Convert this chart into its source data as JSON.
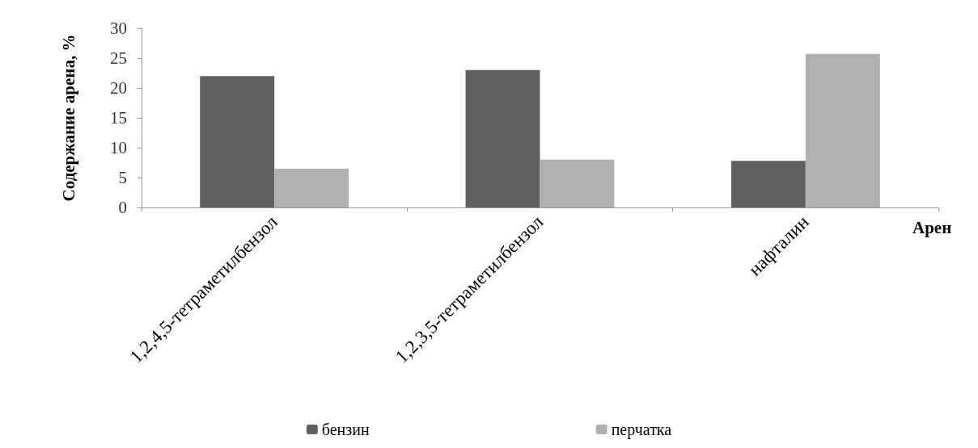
{
  "chart_data": {
    "type": "bar",
    "xlabel": "Арен",
    "ylabel": "Содержание арена, %",
    "categories": [
      "1,2,4,5-тетраметилбензол",
      "1,2,3,5-тетраметилбензол",
      "нафталин"
    ],
    "series": [
      {
        "name": "бензин",
        "color": "#606060",
        "values": [
          22,
          23,
          7.8
        ]
      },
      {
        "name": "перчатка",
        "color": "#b0b0b0",
        "values": [
          6.5,
          8,
          25.7
        ]
      }
    ],
    "ylim": [
      0,
      30
    ],
    "yticks": [
      0,
      5,
      10,
      15,
      20,
      25,
      30
    ],
    "grid": false,
    "legend": "bottom"
  }
}
